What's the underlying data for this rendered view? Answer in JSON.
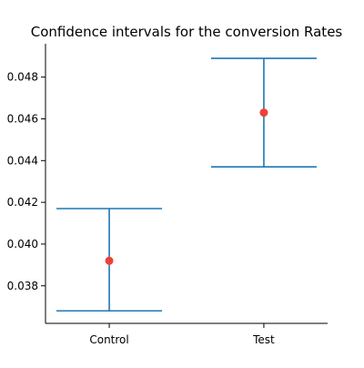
{
  "chart_data": {
    "type": "scatter",
    "title": "Confidence intervals for the conversion Rates",
    "xlabel": "",
    "ylabel": "",
    "categories": [
      "Control",
      "Test"
    ],
    "points": [
      {
        "category": "Control",
        "mean": 0.0392,
        "lower": 0.0368,
        "upper": 0.0417
      },
      {
        "category": "Test",
        "mean": 0.0463,
        "lower": 0.0437,
        "upper": 0.0489
      }
    ],
    "ylim": [
      0.0362,
      0.0496
    ],
    "yticks": [
      0.038,
      0.04,
      0.042,
      0.044,
      0.046,
      0.048
    ],
    "ytick_labels": [
      "0.038",
      "0.040",
      "0.042",
      "0.044",
      "0.046",
      "0.048"
    ],
    "colors": {
      "interval": "#1f77b4",
      "mean": "#ef4136",
      "axis": "#000000"
    },
    "grid": false,
    "legend": "none"
  }
}
